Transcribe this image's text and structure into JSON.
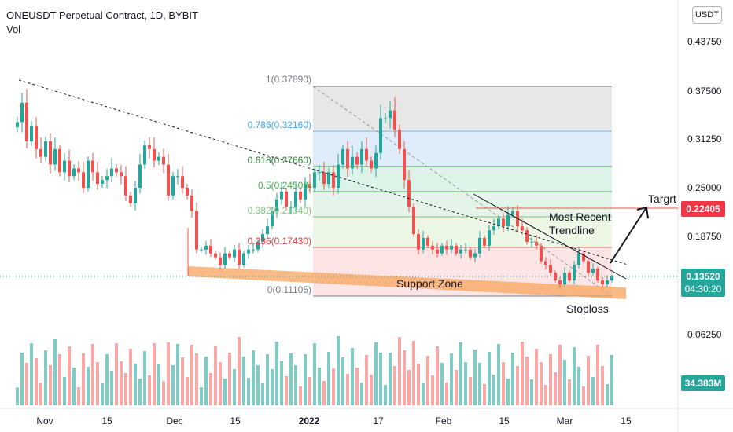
{
  "header": {
    "title": "ONEUSDT Perpetual Contract, 1D, BYBIT",
    "vol_label": "Vol"
  },
  "axis": {
    "unit": "USDT",
    "price_ticks": [
      "0.43750",
      "0.37500",
      "0.31250",
      "0.25000",
      "0.18750",
      "0.06250"
    ],
    "date_ticks": [
      "Nov",
      "15",
      "Dec",
      "15",
      "2022",
      "17",
      "Feb",
      "15",
      "Mar",
      "15"
    ]
  },
  "badges": {
    "target_price": "0.22405",
    "last_price": "0.13520",
    "countdown": "04:30:20",
    "volume": "34.383M"
  },
  "fib": {
    "levels": [
      {
        "label": "1(0.37890)",
        "value": 0.3789
      },
      {
        "label": "0.786(0.32160)",
        "value": 0.3216
      },
      {
        "label": "0.618(0.27660)",
        "value": 0.2766
      },
      {
        "label": "0.5(0.24500)",
        "value": 0.245
      },
      {
        "label": "0.382(0.21340)",
        "value": 0.2134
      },
      {
        "label": "0.236(0.17430)",
        "value": 0.1743
      },
      {
        "label": "0(0.11105)",
        "value": 0.11105
      }
    ]
  },
  "annotations": {
    "target": "Targrt",
    "trendline": [
      "Most Recent",
      "Trendline"
    ],
    "support": "Support Zone",
    "stoploss": "Stoploss"
  },
  "colors": {
    "up": "#26a69a",
    "down": "#ef5350",
    "vol_up": "#80cbc4",
    "vol_down": "#f7a9a7",
    "target_badge": "#f23645",
    "price_badge": "#26a69a",
    "support": "#f7a35c"
  },
  "chart_data": {
    "type": "candlestick",
    "title": "ONEUSDT Perpetual Contract, 1D, BYBIT",
    "unit": "USDT",
    "x_ticks": [
      "Nov",
      "15",
      "Dec",
      "15",
      "2022",
      "17",
      "Feb",
      "15",
      "Mar",
      "15"
    ],
    "y_ticks": [
      0.4375,
      0.375,
      0.3125,
      0.25,
      0.1875,
      0.0625
    ],
    "ylim": [
      0.0,
      0.475
    ],
    "last_price": 0.1352,
    "target_price": 0.22405,
    "fib_retracement": [
      0.3789,
      0.3216,
      0.2766,
      0.245,
      0.2134,
      0.1743,
      0.11105
    ],
    "close": [
      0.335,
      0.36,
      0.31,
      0.33,
      0.3,
      0.29,
      0.31,
      0.28,
      0.3,
      0.27,
      0.285,
      0.265,
      0.275,
      0.27,
      0.25,
      0.285,
      0.27,
      0.255,
      0.26,
      0.265,
      0.275,
      0.27,
      0.265,
      0.24,
      0.23,
      0.25,
      0.28,
      0.305,
      0.3,
      0.285,
      0.29,
      0.28,
      0.24,
      0.265,
      0.265,
      0.25,
      0.24,
      0.22,
      0.17,
      0.17,
      0.175,
      0.165,
      0.16,
      0.15,
      0.165,
      0.16,
      0.17,
      0.15,
      0.165,
      0.17,
      0.17,
      0.18,
      0.19,
      0.2,
      0.22,
      0.235,
      0.245,
      0.225,
      0.225,
      0.245,
      0.235,
      0.255,
      0.25,
      0.27,
      0.27,
      0.255,
      0.27,
      0.25,
      0.28,
      0.3,
      0.275,
      0.29,
      0.28,
      0.3,
      0.285,
      0.275,
      0.295,
      0.34,
      0.34,
      0.35,
      0.325,
      0.3,
      0.26,
      0.225,
      0.19,
      0.17,
      0.185,
      0.175,
      0.17,
      0.165,
      0.175,
      0.17,
      0.175,
      0.165,
      0.17,
      0.17,
      0.16,
      0.165,
      0.185,
      0.175,
      0.195,
      0.2,
      0.21,
      0.2,
      0.215,
      0.22,
      0.2,
      0.195,
      0.18,
      0.18,
      0.175,
      0.155,
      0.15,
      0.14,
      0.13,
      0.125,
      0.14,
      0.13,
      0.15,
      0.165,
      0.155,
      0.14,
      0.145,
      0.13,
      0.125,
      0.13,
      0.135
    ]
  }
}
